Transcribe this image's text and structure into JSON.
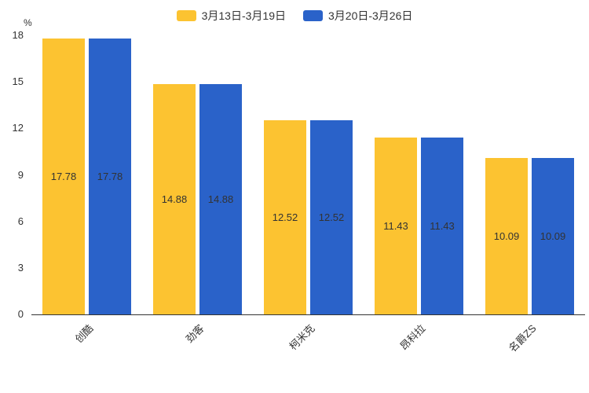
{
  "chart_data": {
    "type": "bar",
    "categories": [
      "创酷",
      "劲客",
      "柯米克",
      "昂科拉",
      "名爵ZS"
    ],
    "series": [
      {
        "name": "3月13日-3月19日",
        "color": "#FCC331",
        "values": [
          17.78,
          14.88,
          12.52,
          11.43,
          10.09
        ]
      },
      {
        "name": "3月20日-3月26日",
        "color": "#2A62C9",
        "values": [
          17.78,
          14.88,
          12.52,
          11.43,
          10.09
        ]
      }
    ],
    "unit_label": "%",
    "ylim": [
      0,
      18
    ],
    "yticks": [
      0,
      3,
      6,
      9,
      12,
      15,
      18
    ],
    "grid": false,
    "legend_position": "top",
    "bar_label_position": "inside-center",
    "axis_color": "#333333",
    "label_color": "#333333"
  }
}
